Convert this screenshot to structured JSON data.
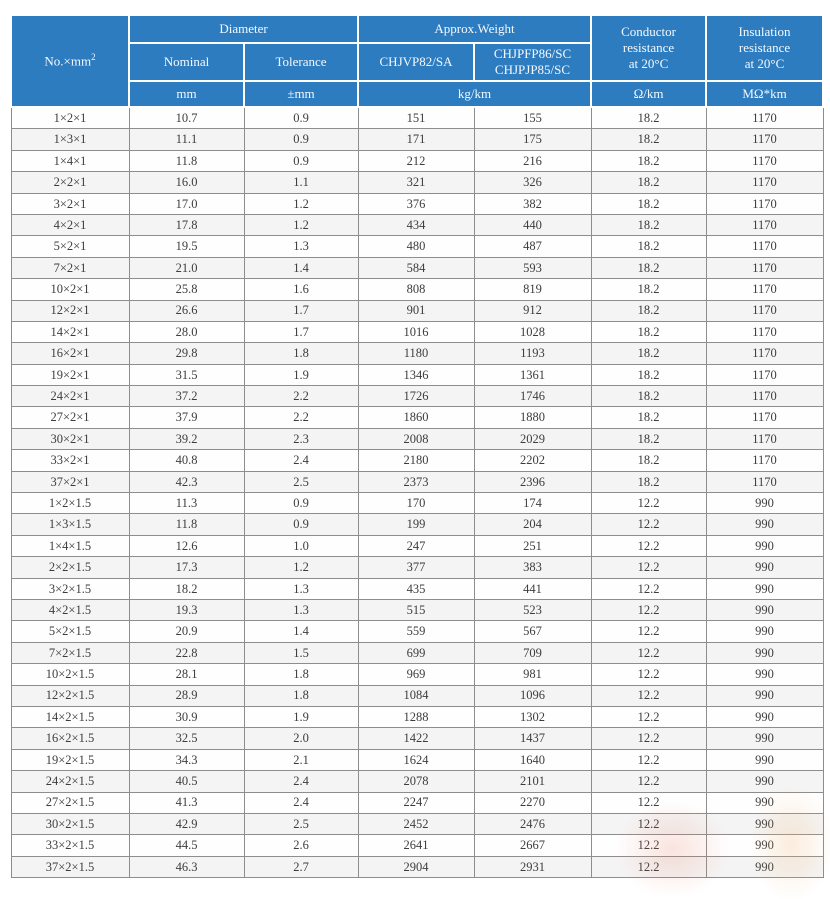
{
  "colors": {
    "header_bg": "#2e7cc0",
    "header_text": "#f4f9fd",
    "grid_line": "#8d8d8d",
    "row_stripe": "#f4f4f4",
    "body_text": "#3d3d3d"
  },
  "table": {
    "header": {
      "no_prefix": "No.×mm",
      "no_sup": "2",
      "diameter": "Diameter",
      "nominal": "Nominal",
      "tolerance": "Tolerance",
      "approx_weight": "Approx.Weight",
      "chjvp82sa": "CHJVP82/SA",
      "chjpfp_lines": [
        "CHJPFP86/SC",
        "CHJPJP85/SC"
      ],
      "conductor_lines": [
        "Conductor",
        "resistance",
        "at 20°C"
      ],
      "insulation_lines": [
        "Insulation",
        "resistance",
        "at 20°C"
      ],
      "unit_mm": "mm",
      "unit_tolerance": "±mm",
      "unit_weight": "kg/km",
      "unit_conductor": "Ω/km",
      "unit_insulation": "MΩ*km"
    },
    "columns": [
      "spec",
      "nominal",
      "tolerance",
      "weight-chjvp82sa",
      "weight-chjpfp86sc",
      "conductor-resistance",
      "insulation-resistance"
    ],
    "rows": [
      [
        "1×2×1",
        "10.7",
        "0.9",
        "151",
        "155",
        "18.2",
        "1170"
      ],
      [
        "1×3×1",
        "11.1",
        "0.9",
        "171",
        "175",
        "18.2",
        "1170"
      ],
      [
        "1×4×1",
        "11.8",
        "0.9",
        "212",
        "216",
        "18.2",
        "1170"
      ],
      [
        "2×2×1",
        "16.0",
        "1.1",
        "321",
        "326",
        "18.2",
        "1170"
      ],
      [
        "3×2×1",
        "17.0",
        "1.2",
        "376",
        "382",
        "18.2",
        "1170"
      ],
      [
        "4×2×1",
        "17.8",
        "1.2",
        "434",
        "440",
        "18.2",
        "1170"
      ],
      [
        "5×2×1",
        "19.5",
        "1.3",
        "480",
        "487",
        "18.2",
        "1170"
      ],
      [
        "7×2×1",
        "21.0",
        "1.4",
        "584",
        "593",
        "18.2",
        "1170"
      ],
      [
        "10×2×1",
        "25.8",
        "1.6",
        "808",
        "819",
        "18.2",
        "1170"
      ],
      [
        "12×2×1",
        "26.6",
        "1.7",
        "901",
        "912",
        "18.2",
        "1170"
      ],
      [
        "14×2×1",
        "28.0",
        "1.7",
        "1016",
        "1028",
        "18.2",
        "1170"
      ],
      [
        "16×2×1",
        "29.8",
        "1.8",
        "1180",
        "1193",
        "18.2",
        "1170"
      ],
      [
        "19×2×1",
        "31.5",
        "1.9",
        "1346",
        "1361",
        "18.2",
        "1170"
      ],
      [
        "24×2×1",
        "37.2",
        "2.2",
        "1726",
        "1746",
        "18.2",
        "1170"
      ],
      [
        "27×2×1",
        "37.9",
        "2.2",
        "1860",
        "1880",
        "18.2",
        "1170"
      ],
      [
        "30×2×1",
        "39.2",
        "2.3",
        "2008",
        "2029",
        "18.2",
        "1170"
      ],
      [
        "33×2×1",
        "40.8",
        "2.4",
        "2180",
        "2202",
        "18.2",
        "1170"
      ],
      [
        "37×2×1",
        "42.3",
        "2.5",
        "2373",
        "2396",
        "18.2",
        "1170"
      ],
      [
        "1×2×1.5",
        "11.3",
        "0.9",
        "170",
        "174",
        "12.2",
        "990"
      ],
      [
        "1×3×1.5",
        "11.8",
        "0.9",
        "199",
        "204",
        "12.2",
        "990"
      ],
      [
        "1×4×1.5",
        "12.6",
        "1.0",
        "247",
        "251",
        "12.2",
        "990"
      ],
      [
        "2×2×1.5",
        "17.3",
        "1.2",
        "377",
        "383",
        "12.2",
        "990"
      ],
      [
        "3×2×1.5",
        "18.2",
        "1.3",
        "435",
        "441",
        "12.2",
        "990"
      ],
      [
        "4×2×1.5",
        "19.3",
        "1.3",
        "515",
        "523",
        "12.2",
        "990"
      ],
      [
        "5×2×1.5",
        "20.9",
        "1.4",
        "559",
        "567",
        "12.2",
        "990"
      ],
      [
        "7×2×1.5",
        "22.8",
        "1.5",
        "699",
        "709",
        "12.2",
        "990"
      ],
      [
        "10×2×1.5",
        "28.1",
        "1.8",
        "969",
        "981",
        "12.2",
        "990"
      ],
      [
        "12×2×1.5",
        "28.9",
        "1.8",
        "1084",
        "1096",
        "12.2",
        "990"
      ],
      [
        "14×2×1.5",
        "30.9",
        "1.9",
        "1288",
        "1302",
        "12.2",
        "990"
      ],
      [
        "16×2×1.5",
        "32.5",
        "2.0",
        "1422",
        "1437",
        "12.2",
        "990"
      ],
      [
        "19×2×1.5",
        "34.3",
        "2.1",
        "1624",
        "1640",
        "12.2",
        "990"
      ],
      [
        "24×2×1.5",
        "40.5",
        "2.4",
        "2078",
        "2101",
        "12.2",
        "990"
      ],
      [
        "27×2×1.5",
        "41.3",
        "2.4",
        "2247",
        "2270",
        "12.2",
        "990"
      ],
      [
        "30×2×1.5",
        "42.9",
        "2.5",
        "2452",
        "2476",
        "12.2",
        "990"
      ],
      [
        "33×2×1.5",
        "44.5",
        "2.6",
        "2641",
        "2667",
        "12.2",
        "990"
      ],
      [
        "37×2×1.5",
        "46.3",
        "2.7",
        "2904",
        "2931",
        "12.2",
        "990"
      ]
    ]
  }
}
